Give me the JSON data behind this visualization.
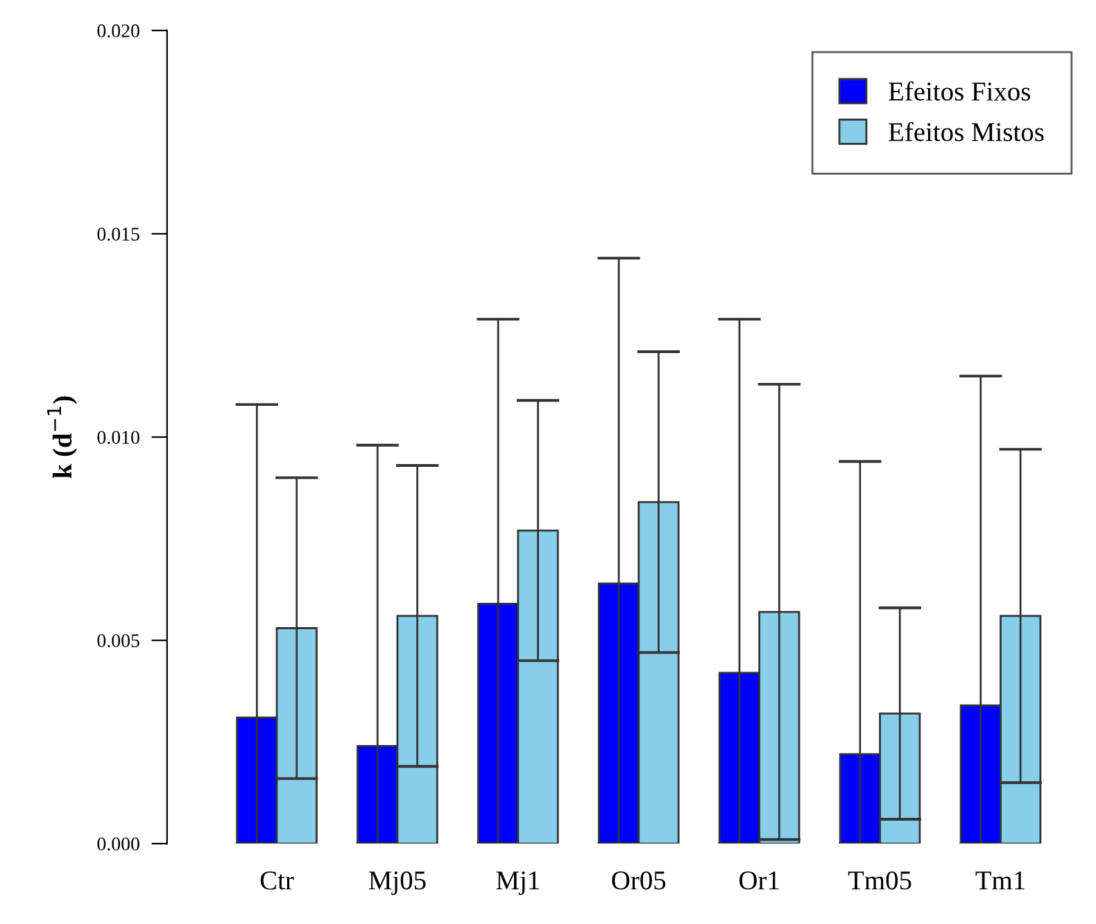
{
  "chart_data": {
    "type": "bar",
    "ylabel": "k (d$^{−1}$)",
    "categories": [
      "Ctr",
      "Mj05",
      "Mj1",
      "Or05",
      "Or1",
      "Tm05",
      "Tm1"
    ],
    "ylim": [
      0,
      0.02
    ],
    "yticks": [
      {
        "value": 0,
        "label": "0.000"
      },
      {
        "value": 0.005,
        "label": "0.005"
      },
      {
        "value": 0.01,
        "label": "0.010"
      },
      {
        "value": 0.015,
        "label": "0.015"
      },
      {
        "value": 0.02,
        "label": "0.020"
      }
    ],
    "series": [
      {
        "name": "Efeitos Fixos",
        "color": "#0000ff",
        "values": [
          0.0031,
          0.0024,
          0.0059,
          0.0064,
          0.0042,
          0.0022,
          0.0034
        ],
        "errors": [
          [
            0,
            0.0108
          ],
          [
            0,
            0.0098
          ],
          [
            0,
            0.0129
          ],
          [
            0,
            0.0144
          ],
          [
            0,
            0.0129
          ],
          [
            0,
            0.0094
          ],
          [
            0,
            0.0115
          ]
        ]
      },
      {
        "name": "Efeitos Mistos",
        "color": "#87ceeb",
        "values": [
          0.0053,
          0.0056,
          0.0077,
          0.0084,
          0.0057,
          0.0032,
          0.0056
        ],
        "errors": [
          [
            0.0016,
            0.009
          ],
          [
            0.0019,
            0.0093
          ],
          [
            0.0045,
            0.0109
          ],
          [
            0.0047,
            0.0121
          ],
          [
            0.0001,
            0.0113
          ],
          [
            0.0006,
            0.0058
          ],
          [
            0.0015,
            0.0097
          ]
        ]
      }
    ],
    "grid": false,
    "legend": "top right"
  }
}
